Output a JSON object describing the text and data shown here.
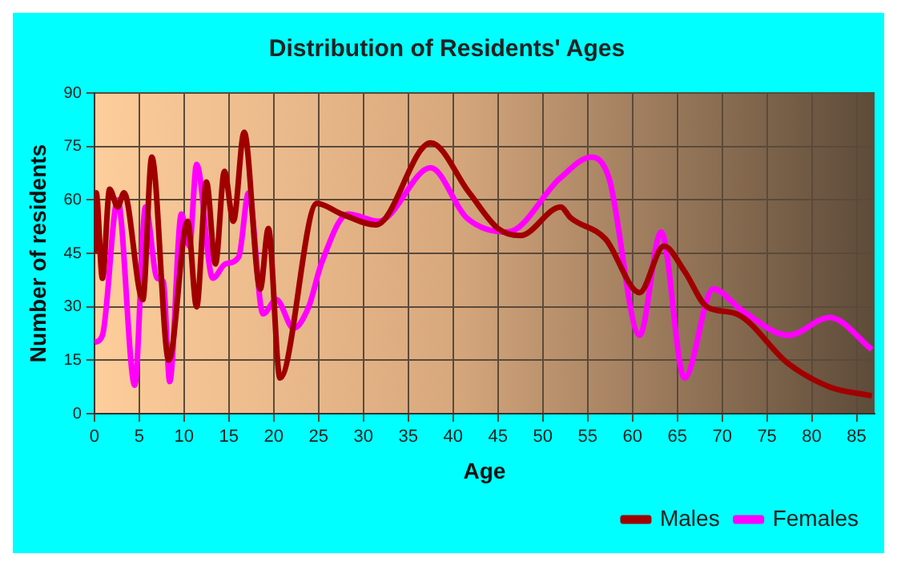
{
  "chart_data": {
    "type": "line",
    "title": "Distribution of Residents' Ages",
    "xlabel": "Age",
    "ylabel": "Number of residents",
    "xlim": [
      0,
      87
    ],
    "xticks": [
      0,
      5,
      10,
      15,
      20,
      25,
      30,
      35,
      40,
      45,
      50,
      55,
      60,
      65,
      70,
      75,
      80,
      85
    ],
    "ylim": [
      0,
      90
    ],
    "yticks": [
      0,
      15,
      30,
      45,
      60,
      75,
      90
    ],
    "grid": true,
    "legend": "bottom right",
    "series": [
      {
        "name": "Males",
        "color": "#a00000",
        "x": [
          0,
          0.2,
          0.9,
          1.7,
          2.6,
          3.3,
          5.4,
          6.4,
          8.3,
          10.4,
          11.4,
          12.5,
          13.5,
          14.5,
          15.5,
          16.7,
          18.5,
          19.4,
          20.7,
          24.8,
          27.6,
          31.4,
          37.5,
          41.8,
          45,
          47.5,
          52,
          53.1,
          57,
          60.8,
          63.5,
          65.8,
          68.3,
          71.6,
          77.4,
          82,
          86.7
        ],
        "values": [
          45,
          62,
          38,
          63,
          58,
          62,
          32,
          72,
          15,
          54,
          30,
          65,
          42,
          68,
          54,
          79,
          35,
          52,
          10,
          59,
          56,
          53,
          76,
          62,
          52,
          50,
          58,
          55,
          49,
          34,
          47,
          40,
          30,
          28,
          14,
          7.5,
          5
        ]
      },
      {
        "name": "Females",
        "color": "#ff00ff",
        "x": [
          0,
          0.9,
          2.6,
          4.5,
          5.7,
          7,
          7.7,
          8.4,
          9.7,
          10.6,
          11.4,
          13.2,
          14.6,
          16.1,
          17.2,
          18.8,
          20.3,
          22.2,
          23.9,
          25.3,
          28.3,
          31.7,
          37.5,
          41.5,
          46.1,
          51.9,
          55.4,
          57.4,
          60.8,
          63.2,
          65.8,
          69,
          72.2,
          77.4,
          82,
          86.7
        ],
        "values": [
          20,
          22,
          60,
          8,
          58,
          38,
          37,
          9,
          56,
          47,
          70,
          38,
          42,
          44,
          62,
          28,
          32,
          24,
          30,
          42,
          56,
          54,
          69,
          55,
          51,
          66,
          72,
          66,
          22,
          51,
          10,
          35,
          29,
          22,
          27,
          18
        ]
      }
    ]
  }
}
